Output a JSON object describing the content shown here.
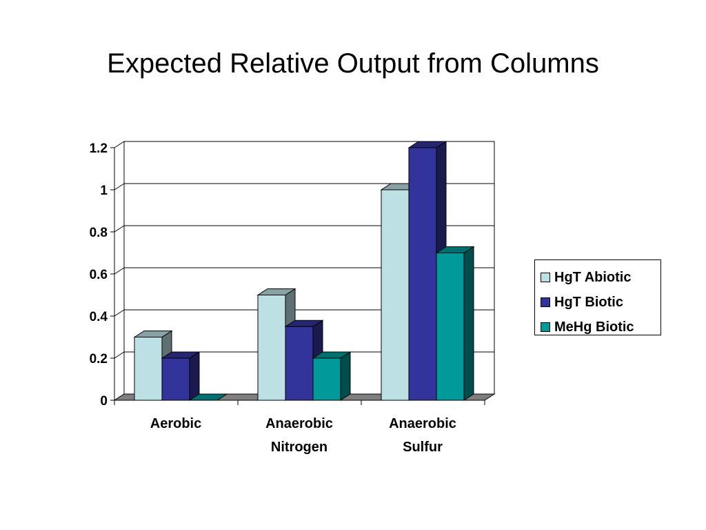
{
  "title": "Expected Relative Output from Columns",
  "chart_data": {
    "type": "bar",
    "style": "3d-clustered",
    "categories": [
      [
        "Aerobic"
      ],
      [
        "Anaerobic",
        "Nitrogen"
      ],
      [
        "Anaerobic",
        "Sulfur"
      ]
    ],
    "series": [
      {
        "name": "HgT Abiotic",
        "values": [
          0.3,
          0.5,
          1.0
        ],
        "color": "#bde0e5"
      },
      {
        "name": "HgT Biotic",
        "values": [
          0.2,
          0.35,
          1.2
        ],
        "color": "#33339c"
      },
      {
        "name": "MeHg Biotic",
        "values": [
          0.0,
          0.2,
          0.7
        ],
        "color": "#009a9a"
      }
    ],
    "yticks": [
      "0",
      "0.2",
      "0.4",
      "0.6",
      "0.8",
      "1",
      "1.2"
    ],
    "ylim": [
      0,
      1.2
    ],
    "grid": true,
    "legend_position": "right"
  }
}
